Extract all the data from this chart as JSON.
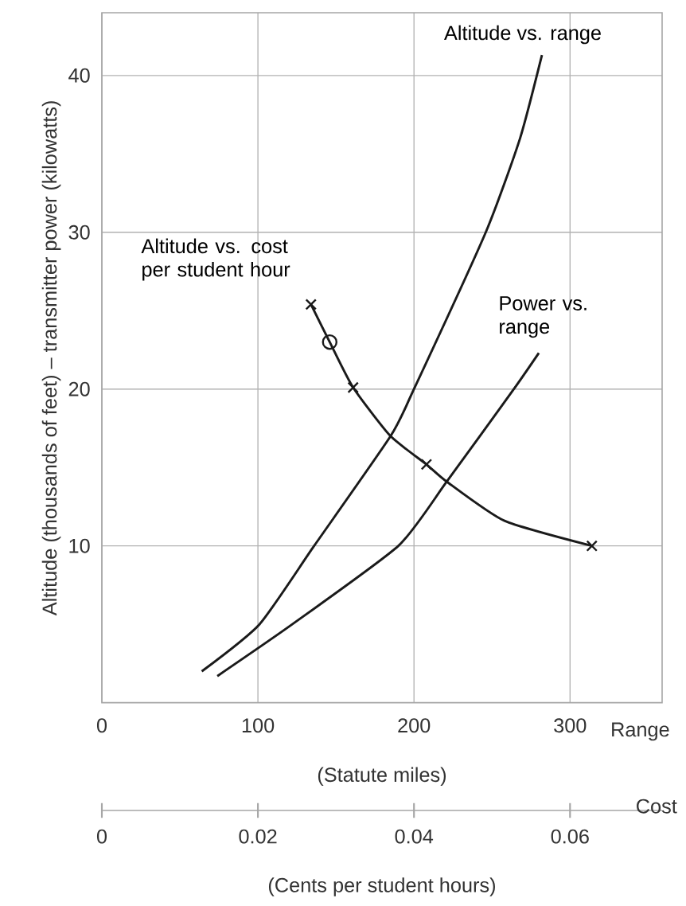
{
  "chart_data": {
    "type": "line",
    "xlabel": "Range",
    "x2label": "Cost",
    "ylabel": "Altitude (thousands of feet) – transmitter power (kilowatts)",
    "annotations": [
      "(Statute miles)",
      "(Cents per student hours)"
    ],
    "xlim": [
      0,
      359
    ],
    "xticks": [
      0,
      100,
      200,
      300
    ],
    "ylim": [
      0,
      44
    ],
    "yticks": [
      10,
      20,
      30,
      40
    ],
    "x2lim": [
      0,
      0.0718
    ],
    "x2ticks": [
      0,
      0.02,
      0.04,
      0.06
    ],
    "grid": true,
    "series": [
      {
        "name": "Altitude vs. range",
        "color": "#1a1a1a",
        "x": [
          64,
          101,
          136,
          185,
          200,
          246,
          268,
          282
        ],
        "values": [
          2,
          5,
          10,
          17,
          20,
          30,
          36,
          41.3
        ]
      },
      {
        "name": "Power vs. range",
        "color": "#1a1a1a",
        "x": [
          74,
          122,
          190,
          221,
          264,
          280
        ],
        "values": [
          1.7,
          5,
          10,
          14.1,
          20,
          22.3
        ]
      },
      {
        "name": "Altitude vs. cost per student hour",
        "color": "#1a1a1a",
        "axis": "x2",
        "x": [
          0.0268,
          0.0292,
          0.0322,
          0.037,
          0.0416,
          0.0442,
          0.0516,
          0.0628
        ],
        "values": [
          25.4,
          23.0,
          20.1,
          17,
          15.2,
          14.1,
          11.6,
          10.0
        ]
      },
      {
        "type": "scatter",
        "color": "#1a1a1a",
        "axis": "x2",
        "marker": "cross",
        "x": [
          0.0268,
          0.0322,
          0.0416,
          0.0628
        ],
        "values": [
          25.4,
          20.1,
          15.2,
          10.0
        ]
      },
      {
        "type": "scatter",
        "color": "#1a1a1a",
        "axis": "x2",
        "marker": "circle",
        "x": [
          0.0292
        ],
        "values": [
          23.0
        ]
      }
    ]
  }
}
